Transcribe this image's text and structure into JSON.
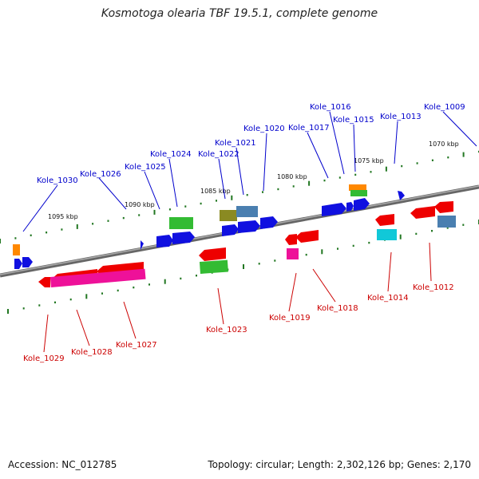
{
  "title": "Kosmotoga olearia TBF 19.5.1, complete genome",
  "accession": "Accession: NC_012785",
  "summary": "Topology: circular; Length: 2,302,126 bp; Genes: 2,170",
  "scale_labels": [
    "1070 kbp",
    "1075 kbp",
    "1080 kbp",
    "1085 kbp",
    "1090 kbp",
    "1095 kbp"
  ],
  "genes_top": [
    "Kole_1009",
    "Kole_1013",
    "Kole_1015",
    "Kole_1016",
    "Kole_1017",
    "Kole_1020",
    "Kole_1021",
    "Kole_1022",
    "Kole_1024",
    "Kole_1025",
    "Kole_1026",
    "Kole_1030"
  ],
  "genes_bottom": [
    "Kole_1012",
    "Kole_1014",
    "Kole_1018",
    "Kole_1019",
    "Kole_1023",
    "Kole_1027",
    "Kole_1028",
    "Kole_1029"
  ],
  "colors": {
    "top_label": "#0000cc",
    "bottom_label": "#cc0000",
    "blue": "#1010e0",
    "red": "#ee0000",
    "green": "#33bb33",
    "magenta": "#ee1199",
    "cyan": "#11c8d8",
    "orange": "#ff8800",
    "olive": "#8a8a22",
    "steel": "#4a7fb0",
    "tick": "#227722",
    "backbone": "#888888"
  }
}
